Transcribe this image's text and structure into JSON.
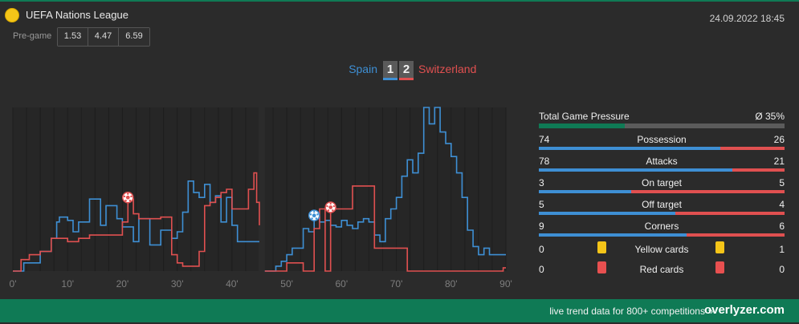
{
  "header": {
    "competition": "UEFA Nations League",
    "datetime": "24.09.2022 18:45",
    "pregame_label": "Pre-game",
    "odds": [
      "1.53",
      "4.47",
      "6.59"
    ]
  },
  "match": {
    "home": "Spain",
    "away": "Switzerland",
    "home_score": "1",
    "away_score": "2"
  },
  "colors": {
    "home": "#3e8fd4",
    "away": "#e05050",
    "brand": "#0f7a55",
    "yellow_card": "#f5c518",
    "red_card": "#e85050"
  },
  "chart_data": {
    "type": "line",
    "x_tick_labels": [
      "0'",
      "10'",
      "20'",
      "30'",
      "40'",
      "50'",
      "60'",
      "70'",
      "80'",
      "90'"
    ],
    "xlim": [
      0,
      90
    ],
    "ylim": [
      0,
      100
    ],
    "grid": true,
    "series": [
      {
        "name": "Spain",
        "points": [
          [
            0,
            0
          ],
          [
            2,
            0
          ],
          [
            2,
            5
          ],
          [
            5,
            5
          ],
          [
            5,
            12
          ],
          [
            7,
            12
          ],
          [
            7,
            20
          ],
          [
            8,
            20
          ],
          [
            8,
            30
          ],
          [
            8.5,
            30
          ],
          [
            8.5,
            33
          ],
          [
            10,
            33
          ],
          [
            10,
            31
          ],
          [
            11,
            31
          ],
          [
            11,
            24
          ],
          [
            12,
            24
          ],
          [
            12,
            30
          ],
          [
            14,
            30
          ],
          [
            14,
            44
          ],
          [
            16,
            44
          ],
          [
            16,
            28
          ],
          [
            17,
            28
          ],
          [
            17,
            40
          ],
          [
            19,
            40
          ],
          [
            19,
            32
          ],
          [
            20,
            32
          ],
          [
            20,
            27
          ],
          [
            22,
            27
          ],
          [
            22,
            18
          ],
          [
            23,
            18
          ],
          [
            23,
            32
          ],
          [
            25,
            32
          ],
          [
            25,
            16
          ],
          [
            27,
            16
          ],
          [
            27,
            25
          ],
          [
            29,
            25
          ],
          [
            29,
            20
          ],
          [
            30,
            20
          ],
          [
            30,
            24
          ],
          [
            31,
            24
          ],
          [
            31,
            36
          ],
          [
            32,
            36
          ],
          [
            32,
            55
          ],
          [
            33,
            55
          ],
          [
            33,
            48
          ],
          [
            34,
            48
          ],
          [
            34,
            45
          ],
          [
            35,
            45
          ],
          [
            35,
            53
          ],
          [
            36,
            53
          ],
          [
            36,
            42
          ],
          [
            37,
            42
          ],
          [
            37,
            46
          ],
          [
            38,
            46
          ],
          [
            38,
            30
          ],
          [
            39,
            30
          ],
          [
            39,
            45
          ],
          [
            40,
            45
          ],
          [
            40,
            28
          ],
          [
            41,
            28
          ],
          [
            41,
            18
          ],
          [
            43,
            18
          ],
          [
            43,
            18
          ],
          [
            45,
            18
          ],
          [
            45,
            null
          ],
          [
            46,
            0
          ],
          [
            48,
            0
          ],
          [
            48,
            3
          ],
          [
            49,
            3
          ],
          [
            49,
            6
          ],
          [
            50,
            6
          ],
          [
            50,
            10
          ],
          [
            51,
            10
          ],
          [
            51,
            14
          ],
          [
            53,
            14
          ],
          [
            53,
            26
          ],
          [
            54,
            26
          ],
          [
            54,
            24
          ],
          [
            55,
            24
          ],
          [
            55,
            33
          ],
          [
            56,
            33
          ],
          [
            56,
            30
          ],
          [
            57,
            30
          ],
          [
            57,
            31
          ],
          [
            58,
            31
          ],
          [
            58,
            28
          ],
          [
            59,
            28
          ],
          [
            59,
            27
          ],
          [
            60,
            27
          ],
          [
            60,
            31
          ],
          [
            61,
            31
          ],
          [
            61,
            28
          ],
          [
            62,
            28
          ],
          [
            62,
            26
          ],
          [
            63,
            26
          ],
          [
            63,
            30
          ],
          [
            64,
            30
          ],
          [
            64,
            32
          ],
          [
            65,
            32
          ],
          [
            65,
            30
          ],
          [
            66,
            30
          ],
          [
            66,
            22
          ],
          [
            67,
            22
          ],
          [
            67,
            18
          ],
          [
            68,
            18
          ],
          [
            68,
            32
          ],
          [
            69,
            32
          ],
          [
            69,
            38
          ],
          [
            70,
            38
          ],
          [
            70,
            45
          ],
          [
            71,
            45
          ],
          [
            71,
            58
          ],
          [
            72,
            58
          ],
          [
            72,
            68
          ],
          [
            73,
            68
          ],
          [
            73,
            60
          ],
          [
            74,
            60
          ],
          [
            74,
            72
          ],
          [
            75,
            72
          ],
          [
            75,
            100
          ],
          [
            76,
            100
          ],
          [
            76,
            90
          ],
          [
            77,
            90
          ],
          [
            77,
            100
          ],
          [
            78,
            100
          ],
          [
            78,
            85
          ],
          [
            79,
            85
          ],
          [
            79,
            78
          ],
          [
            80,
            78
          ],
          [
            80,
            70
          ],
          [
            81,
            70
          ],
          [
            81,
            60
          ],
          [
            82,
            60
          ],
          [
            82,
            45
          ],
          [
            83,
            45
          ],
          [
            83,
            25
          ],
          [
            84,
            25
          ],
          [
            84,
            15
          ],
          [
            85,
            15
          ],
          [
            85,
            10
          ],
          [
            86,
            10
          ],
          [
            86,
            14
          ],
          [
            87,
            14
          ],
          [
            87,
            10
          ],
          [
            90,
            10
          ]
        ]
      },
      {
        "name": "Switzerland",
        "points": [
          [
            0,
            0
          ],
          [
            1.5,
            0
          ],
          [
            1.5,
            7
          ],
          [
            3,
            7
          ],
          [
            3,
            10
          ],
          [
            5,
            10
          ],
          [
            5,
            12
          ],
          [
            7,
            12
          ],
          [
            7,
            20
          ],
          [
            10,
            20
          ],
          [
            10,
            18
          ],
          [
            12,
            18
          ],
          [
            12,
            20
          ],
          [
            14,
            20
          ],
          [
            14,
            22
          ],
          [
            15,
            22
          ],
          [
            15,
            22
          ],
          [
            20,
            22
          ],
          [
            20,
            30
          ],
          [
            21,
            30
          ],
          [
            21,
            44
          ],
          [
            22,
            44
          ],
          [
            22,
            35
          ],
          [
            23,
            35
          ],
          [
            23,
            32
          ],
          [
            27,
            32
          ],
          [
            27,
            33
          ],
          [
            29,
            33
          ],
          [
            29,
            10
          ],
          [
            30,
            10
          ],
          [
            30,
            5
          ],
          [
            31,
            5
          ],
          [
            31,
            3
          ],
          [
            34,
            3
          ],
          [
            34,
            12
          ],
          [
            35,
            12
          ],
          [
            35,
            40
          ],
          [
            36,
            40
          ],
          [
            36,
            42
          ],
          [
            37,
            42
          ],
          [
            37,
            45
          ],
          [
            38,
            45
          ],
          [
            38,
            48
          ],
          [
            39,
            48
          ],
          [
            39,
            50
          ],
          [
            40,
            50
          ],
          [
            40,
            38
          ],
          [
            43,
            38
          ],
          [
            43,
            50
          ],
          [
            44,
            50
          ],
          [
            44,
            60
          ],
          [
            44.5,
            60
          ],
          [
            44.5,
            42
          ],
          [
            45,
            42
          ],
          [
            45,
            28
          ],
          [
            45,
            null
          ],
          [
            46,
            0
          ],
          [
            50,
            0
          ],
          [
            50,
            5
          ],
          [
            53,
            5
          ],
          [
            53,
            0
          ],
          [
            55,
            0
          ],
          [
            55,
            26
          ],
          [
            56,
            26
          ],
          [
            56,
            38
          ],
          [
            57,
            38
          ],
          [
            57,
            0
          ],
          [
            58,
            0
          ],
          [
            58,
            38
          ],
          [
            62,
            38
          ],
          [
            62,
            52
          ],
          [
            66,
            52
          ],
          [
            66,
            14
          ],
          [
            68,
            14
          ],
          [
            68,
            14
          ],
          [
            72,
            14
          ],
          [
            72,
            0
          ],
          [
            85,
            0
          ],
          [
            85,
            0
          ],
          [
            89.5,
            0
          ],
          [
            89.5,
            2
          ],
          [
            90,
            2
          ]
        ]
      }
    ],
    "goal_events": [
      {
        "team": "Switzerland",
        "minute": 21
      },
      {
        "team": "Spain",
        "minute": 55
      },
      {
        "team": "Switzerland",
        "minute": 58
      }
    ]
  },
  "stats": {
    "pressure": {
      "label": "Total Game Pressure",
      "value": "Ø 35%",
      "fraction": 0.35
    },
    "rows": [
      {
        "name": "Possession",
        "home": "74",
        "away": "26",
        "home_share": 0.74
      },
      {
        "name": "Attacks",
        "home": "78",
        "away": "21",
        "home_share": 0.788
      },
      {
        "name": "On target",
        "home": "3",
        "away": "5",
        "home_share": 0.375
      },
      {
        "name": "Off target",
        "home": "5",
        "away": "4",
        "home_share": 0.556
      },
      {
        "name": "Corners",
        "home": "9",
        "away": "6",
        "home_share": 0.6
      }
    ],
    "cards": [
      {
        "name": "Yellow cards",
        "home": "0",
        "away": "1",
        "kind": "yellow"
      },
      {
        "name": "Red cards",
        "home": "0",
        "away": "0",
        "kind": "red"
      }
    ]
  },
  "footer": {
    "text": "live trend data for 800+ competitions »",
    "brand": "overlyzer.com"
  }
}
